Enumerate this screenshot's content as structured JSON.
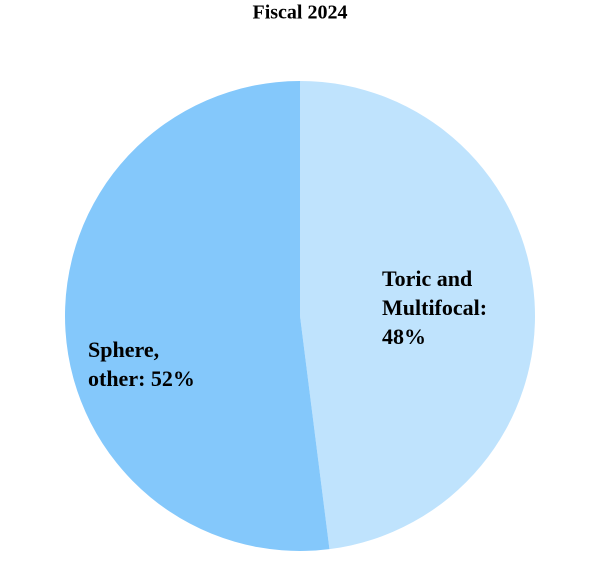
{
  "chart_data": {
    "type": "pie",
    "title": "Fiscal 2024",
    "categories": [
      "Toric and Multifocal",
      "Sphere, other"
    ],
    "values": [
      48,
      52
    ],
    "colors": [
      "#bfe3fd",
      "#84c8fb"
    ],
    "labels": [
      [
        "Toric and",
        "Multifocal:",
        "48%"
      ],
      [
        "Sphere,",
        "other: 52%"
      ]
    ]
  }
}
